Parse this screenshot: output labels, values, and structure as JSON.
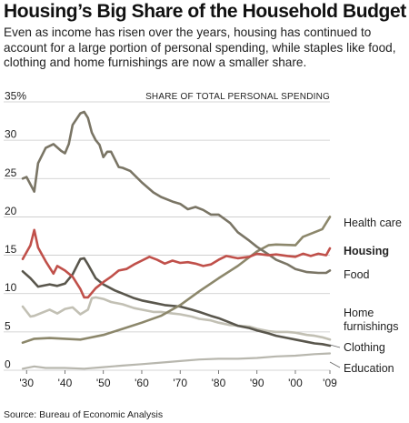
{
  "chart_data": {
    "type": "line",
    "title": "Housing’s Big Share of the Household Budget",
    "subtitle": "Even as income has risen over the years, housing has continued to account for a large portion of personal spending, while staples like food, clothing and home furnishings are now a smaller share.",
    "ylabel": "SHARE OF TOTAL PERSONAL SPENDING",
    "ylim": [
      0,
      35
    ],
    "xlim": [
      1929,
      2009
    ],
    "y_ticks": [
      "35%",
      "30",
      "25",
      "20",
      "15",
      "10",
      "5",
      "0"
    ],
    "x_ticks": [
      "'30",
      "'40",
      "'50",
      "'60",
      "'70",
      "'80",
      "'90",
      "'00",
      "'09"
    ],
    "grid": true,
    "source": "Source: Bureau of Economic Analysis",
    "colors": {
      "housing": "#c0504a",
      "food": "#7a7565",
      "health_care": "#8c876b",
      "home_furnishings": "#c2c0b4",
      "clothing": "#59564c",
      "education": "#b8b7ae",
      "grid": "#c8c8c8"
    },
    "series": [
      {
        "name": "Health care",
        "key": "health_care",
        "bold": false,
        "points": [
          [
            1929,
            3.6
          ],
          [
            1932,
            4.1
          ],
          [
            1936,
            4.2
          ],
          [
            1940,
            4.1
          ],
          [
            1944,
            4.0
          ],
          [
            1946,
            4.2
          ],
          [
            1950,
            4.6
          ],
          [
            1955,
            5.4
          ],
          [
            1960,
            6.2
          ],
          [
            1965,
            7.1
          ],
          [
            1970,
            8.5
          ],
          [
            1975,
            10.3
          ],
          [
            1980,
            12.0
          ],
          [
            1985,
            13.6
          ],
          [
            1990,
            15.5
          ],
          [
            1993,
            16.3
          ],
          [
            1995,
            16.4
          ],
          [
            2000,
            16.3
          ],
          [
            2002,
            17.4
          ],
          [
            2005,
            18.0
          ],
          [
            2007,
            18.4
          ],
          [
            2009,
            20.0
          ]
        ]
      },
      {
        "name": "Housing",
        "key": "housing",
        "bold": true,
        "points": [
          [
            1929,
            14.5
          ],
          [
            1931,
            16.3
          ],
          [
            1932,
            18.3
          ],
          [
            1933,
            16.0
          ],
          [
            1935,
            14.2
          ],
          [
            1937,
            12.6
          ],
          [
            1938,
            13.6
          ],
          [
            1940,
            13.0
          ],
          [
            1942,
            12.2
          ],
          [
            1944,
            10.6
          ],
          [
            1945,
            9.5
          ],
          [
            1946,
            9.5
          ],
          [
            1948,
            10.7
          ],
          [
            1950,
            11.5
          ],
          [
            1952,
            12.2
          ],
          [
            1954,
            13.0
          ],
          [
            1956,
            13.2
          ],
          [
            1958,
            13.8
          ],
          [
            1960,
            14.3
          ],
          [
            1962,
            14.8
          ],
          [
            1964,
            14.4
          ],
          [
            1966,
            13.9
          ],
          [
            1968,
            14.3
          ],
          [
            1970,
            14.0
          ],
          [
            1972,
            14.1
          ],
          [
            1974,
            13.9
          ],
          [
            1976,
            13.6
          ],
          [
            1978,
            13.8
          ],
          [
            1980,
            14.4
          ],
          [
            1982,
            14.9
          ],
          [
            1985,
            14.6
          ],
          [
            1988,
            14.8
          ],
          [
            1990,
            15.2
          ],
          [
            1993,
            15.0
          ],
          [
            1995,
            15.1
          ],
          [
            1998,
            14.9
          ],
          [
            2000,
            14.8
          ],
          [
            2002,
            15.2
          ],
          [
            2004,
            14.9
          ],
          [
            2006,
            15.2
          ],
          [
            2008,
            15.0
          ],
          [
            2009,
            15.9
          ]
        ]
      },
      {
        "name": "Food",
        "key": "food",
        "bold": false,
        "points": [
          [
            1929,
            25.0
          ],
          [
            1930,
            25.2
          ],
          [
            1932,
            23.3
          ],
          [
            1933,
            27.0
          ],
          [
            1935,
            29.0
          ],
          [
            1937,
            29.5
          ],
          [
            1939,
            28.6
          ],
          [
            1940,
            28.3
          ],
          [
            1941,
            29.5
          ],
          [
            1942,
            32.0
          ],
          [
            1944,
            33.5
          ],
          [
            1945,
            33.7
          ],
          [
            1946,
            32.9
          ],
          [
            1947,
            31.0
          ],
          [
            1948,
            30.0
          ],
          [
            1949,
            29.4
          ],
          [
            1950,
            27.8
          ],
          [
            1951,
            28.5
          ],
          [
            1952,
            28.5
          ],
          [
            1954,
            26.5
          ],
          [
            1955,
            26.4
          ],
          [
            1957,
            26.0
          ],
          [
            1960,
            24.5
          ],
          [
            1963,
            23.2
          ],
          [
            1965,
            22.6
          ],
          [
            1968,
            22.0
          ],
          [
            1970,
            21.7
          ],
          [
            1972,
            21.0
          ],
          [
            1974,
            21.3
          ],
          [
            1976,
            20.9
          ],
          [
            1978,
            20.3
          ],
          [
            1980,
            20.3
          ],
          [
            1983,
            19.2
          ],
          [
            1985,
            18.0
          ],
          [
            1988,
            16.9
          ],
          [
            1990,
            16.1
          ],
          [
            1993,
            15.1
          ],
          [
            1995,
            14.4
          ],
          [
            1998,
            13.8
          ],
          [
            2000,
            13.2
          ],
          [
            2003,
            12.8
          ],
          [
            2006,
            12.7
          ],
          [
            2008,
            12.7
          ],
          [
            2009,
            13.0
          ]
        ]
      },
      {
        "name": "Home furnishings",
        "key": "home_furnishings",
        "bold": false,
        "points": [
          [
            1929,
            8.3
          ],
          [
            1931,
            7.0
          ],
          [
            1932,
            7.1
          ],
          [
            1934,
            7.5
          ],
          [
            1936,
            7.9
          ],
          [
            1938,
            7.4
          ],
          [
            1940,
            8.0
          ],
          [
            1942,
            8.2
          ],
          [
            1944,
            7.3
          ],
          [
            1946,
            7.9
          ],
          [
            1947,
            9.4
          ],
          [
            1948,
            9.5
          ],
          [
            1950,
            9.3
          ],
          [
            1952,
            8.9
          ],
          [
            1955,
            8.6
          ],
          [
            1958,
            8.1
          ],
          [
            1960,
            7.9
          ],
          [
            1963,
            7.6
          ],
          [
            1965,
            7.6
          ],
          [
            1968,
            7.4
          ],
          [
            1970,
            7.3
          ],
          [
            1973,
            7.0
          ],
          [
            1975,
            6.7
          ],
          [
            1978,
            6.5
          ],
          [
            1980,
            6.2
          ],
          [
            1983,
            5.9
          ],
          [
            1985,
            5.8
          ],
          [
            1988,
            5.7
          ],
          [
            1990,
            5.4
          ],
          [
            1993,
            5.1
          ],
          [
            1995,
            5.0
          ],
          [
            1998,
            5.0
          ],
          [
            2000,
            4.9
          ],
          [
            2003,
            4.6
          ],
          [
            2005,
            4.5
          ],
          [
            2007,
            4.3
          ],
          [
            2009,
            4.0
          ]
        ]
      },
      {
        "name": "Clothing",
        "key": "clothing",
        "bold": false,
        "points": [
          [
            1929,
            12.9
          ],
          [
            1931,
            12.0
          ],
          [
            1933,
            10.9
          ],
          [
            1936,
            11.2
          ],
          [
            1938,
            11.0
          ],
          [
            1940,
            11.3
          ],
          [
            1942,
            12.5
          ],
          [
            1944,
            14.5
          ],
          [
            1945,
            14.6
          ],
          [
            1946,
            13.8
          ],
          [
            1948,
            12.0
          ],
          [
            1950,
            11.2
          ],
          [
            1953,
            10.4
          ],
          [
            1955,
            10.0
          ],
          [
            1958,
            9.4
          ],
          [
            1960,
            9.1
          ],
          [
            1963,
            8.8
          ],
          [
            1966,
            8.5
          ],
          [
            1970,
            8.3
          ],
          [
            1973,
            7.9
          ],
          [
            1975,
            7.6
          ],
          [
            1978,
            7.1
          ],
          [
            1980,
            6.8
          ],
          [
            1983,
            6.2
          ],
          [
            1985,
            5.8
          ],
          [
            1988,
            5.5
          ],
          [
            1990,
            5.2
          ],
          [
            1993,
            4.8
          ],
          [
            1995,
            4.5
          ],
          [
            1998,
            4.2
          ],
          [
            2000,
            4.0
          ],
          [
            2003,
            3.7
          ],
          [
            2005,
            3.5
          ],
          [
            2007,
            3.4
          ],
          [
            2009,
            3.2
          ]
        ]
      },
      {
        "name": "Education",
        "key": "education",
        "bold": false,
        "points": [
          [
            1929,
            0.2
          ],
          [
            1932,
            0.5
          ],
          [
            1935,
            0.3
          ],
          [
            1940,
            0.3
          ],
          [
            1945,
            0.2
          ],
          [
            1950,
            0.4
          ],
          [
            1955,
            0.6
          ],
          [
            1960,
            0.8
          ],
          [
            1965,
            1.0
          ],
          [
            1970,
            1.2
          ],
          [
            1975,
            1.4
          ],
          [
            1980,
            1.5
          ],
          [
            1985,
            1.5
          ],
          [
            1990,
            1.6
          ],
          [
            1995,
            1.8
          ],
          [
            2000,
            1.9
          ],
          [
            2005,
            2.1
          ],
          [
            2009,
            2.2
          ]
        ]
      }
    ]
  }
}
